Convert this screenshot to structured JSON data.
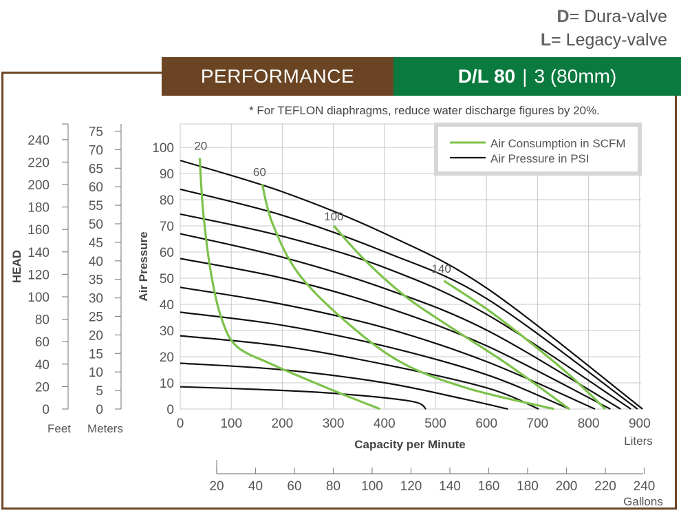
{
  "key": {
    "d_letter": "D",
    "d_text": "= Dura-valve",
    "l_letter": "L",
    "l_text": "= Legacy-valve"
  },
  "banner": {
    "left": "PERFORMANCE",
    "model": "D/L 80",
    "separator": "|",
    "size": "3 (80mm)"
  },
  "note": "* For TEFLON diaphragms, reduce water discharge figures by 20%.",
  "colors": {
    "brown": "#6b4423",
    "green": "#0a7a3e",
    "air_line": "#7dc24b",
    "pressure_line": "#111111"
  },
  "chart_data": {
    "type": "line",
    "xlabel": "Capacity per Minute",
    "ylabel": "Air Pressure",
    "xunit": "Liters",
    "xlim": [
      0,
      900
    ],
    "ylim": [
      0,
      100
    ],
    "x_ticks": [
      "0",
      "100",
      "200",
      "300",
      "400",
      "500",
      "600",
      "700",
      "800",
      "900"
    ],
    "y_ticks": [
      "0",
      "10",
      "20",
      "30",
      "40",
      "50",
      "60",
      "70",
      "80",
      "90",
      "100"
    ],
    "head_label": "HEAD",
    "feet": {
      "unit": "Feet",
      "ticks": [
        "0",
        "20",
        "40",
        "60",
        "80",
        "100",
        "120",
        "140",
        "160",
        "180",
        "200",
        "220",
        "240"
      ]
    },
    "meters": {
      "unit": "Meters",
      "ticks": [
        "0",
        "5",
        "10",
        "15",
        "20",
        "25",
        "30",
        "35",
        "40",
        "45",
        "50",
        "55",
        "60",
        "65",
        "70",
        "75"
      ]
    },
    "gallons": {
      "unit": "Gallons",
      "ticks": [
        "20",
        "40",
        "60",
        "80",
        "100",
        "120",
        "140",
        "160",
        "180",
        "200",
        "220",
        "240"
      ]
    },
    "legend": {
      "air": "Air Consumption in SCFM",
      "pressure": "Air Pressure in PSI",
      "position": "top-right"
    },
    "pressure_curves": [
      {
        "psi": 10,
        "points": [
          [
            0,
            8.5
          ],
          [
            150,
            7.5
          ],
          [
            300,
            6
          ],
          [
            450,
            3
          ],
          [
            480,
            0
          ]
        ]
      },
      {
        "psi": 20,
        "points": [
          [
            0,
            17.5
          ],
          [
            200,
            15
          ],
          [
            400,
            10
          ],
          [
            550,
            4
          ],
          [
            640,
            0
          ]
        ]
      },
      {
        "psi": 30,
        "points": [
          [
            0,
            28
          ],
          [
            200,
            24
          ],
          [
            400,
            17
          ],
          [
            600,
            8
          ],
          [
            700,
            0
          ]
        ]
      },
      {
        "psi": 40,
        "points": [
          [
            0,
            37
          ],
          [
            200,
            32
          ],
          [
            400,
            24
          ],
          [
            600,
            13
          ],
          [
            760,
            0
          ]
        ]
      },
      {
        "psi": 50,
        "points": [
          [
            0,
            46.5
          ],
          [
            200,
            40
          ],
          [
            400,
            31
          ],
          [
            600,
            18
          ],
          [
            810,
            0
          ]
        ]
      },
      {
        "psi": 60,
        "points": [
          [
            0,
            57.5
          ],
          [
            200,
            50
          ],
          [
            400,
            39
          ],
          [
            600,
            24
          ],
          [
            840,
            0
          ]
        ]
      },
      {
        "psi": 70,
        "points": [
          [
            0,
            67
          ],
          [
            200,
            58
          ],
          [
            400,
            46
          ],
          [
            600,
            30
          ],
          [
            860,
            0
          ]
        ]
      },
      {
        "psi": 80,
        "points": [
          [
            0,
            74.5
          ],
          [
            200,
            66
          ],
          [
            400,
            54
          ],
          [
            600,
            36
          ],
          [
            880,
            0
          ]
        ]
      },
      {
        "psi": 90,
        "points": [
          [
            0,
            84
          ],
          [
            200,
            74
          ],
          [
            400,
            60
          ],
          [
            600,
            42
          ],
          [
            893,
            0
          ]
        ]
      },
      {
        "psi": 100,
        "points": [
          [
            0,
            95
          ],
          [
            200,
            83
          ],
          [
            400,
            67
          ],
          [
            600,
            46
          ],
          [
            903,
            0
          ]
        ]
      }
    ],
    "air_curves": [
      {
        "scfm": "20",
        "label_at": [
          40,
          98
        ],
        "points": [
          [
            38,
            96
          ],
          [
            45,
            75
          ],
          [
            60,
            52
          ],
          [
            80,
            35
          ],
          [
            110,
            24
          ],
          [
            180,
            17
          ],
          [
            300,
            7
          ],
          [
            390,
            0
          ]
        ]
      },
      {
        "scfm": "60",
        "label_at": [
          155,
          88
        ],
        "points": [
          [
            160,
            86
          ],
          [
            180,
            71
          ],
          [
            230,
            52
          ],
          [
            320,
            34
          ],
          [
            430,
            18
          ],
          [
            560,
            8
          ],
          [
            730,
            0
          ]
        ]
      },
      {
        "scfm": "100",
        "label_at": [
          300,
          71
        ],
        "points": [
          [
            300,
            70
          ],
          [
            360,
            57
          ],
          [
            440,
            43
          ],
          [
            530,
            31
          ],
          [
            640,
            17
          ],
          [
            760,
            0
          ]
        ]
      },
      {
        "scfm": "140",
        "label_at": [
          510,
          51
        ],
        "points": [
          [
            515,
            49
          ],
          [
            600,
            38
          ],
          [
            680,
            26
          ],
          [
            760,
            13
          ],
          [
            830,
            0
          ]
        ]
      }
    ]
  }
}
